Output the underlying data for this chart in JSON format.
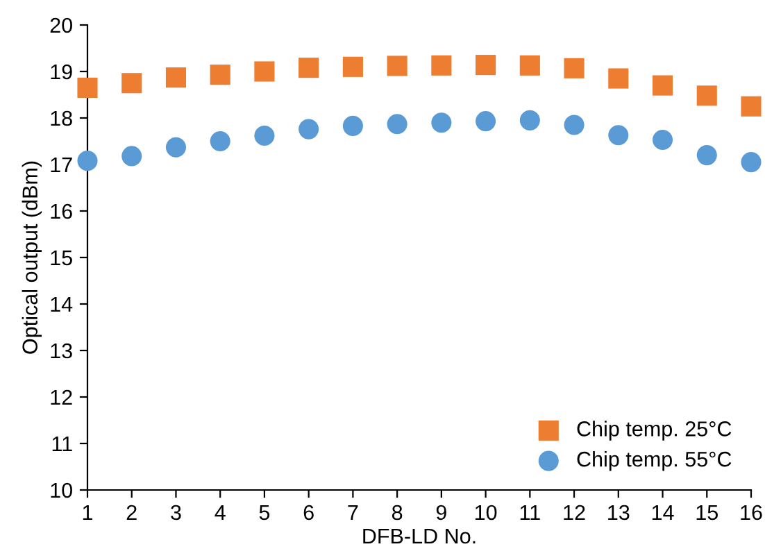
{
  "chart_data": {
    "type": "scatter",
    "xlabel": "DFB-LD No.",
    "ylabel": "Optical output (dBm)",
    "x": [
      1,
      2,
      3,
      4,
      5,
      6,
      7,
      8,
      9,
      10,
      11,
      12,
      13,
      14,
      15,
      16
    ],
    "series": [
      {
        "name": "Chip temp. 25°C",
        "color": "#ed7d31",
        "marker": "square",
        "values": [
          18.65,
          18.75,
          18.87,
          18.93,
          19.0,
          19.08,
          19.1,
          19.12,
          19.13,
          19.14,
          19.13,
          19.07,
          18.85,
          18.7,
          18.48,
          18.25
        ]
      },
      {
        "name": "Chip temp. 55°C",
        "color": "#5b9bd5",
        "marker": "circle",
        "values": [
          17.08,
          17.18,
          17.37,
          17.5,
          17.62,
          17.76,
          17.83,
          17.87,
          17.9,
          17.93,
          17.95,
          17.85,
          17.63,
          17.53,
          17.2,
          17.05
        ]
      }
    ],
    "xlim": [
      1,
      16
    ],
    "xticks": [
      1,
      2,
      3,
      4,
      5,
      6,
      7,
      8,
      9,
      10,
      11,
      12,
      13,
      14,
      15,
      16
    ],
    "ylim": [
      10,
      20
    ],
    "yticks": [
      10,
      11,
      12,
      13,
      14,
      15,
      16,
      17,
      18,
      19,
      20
    ],
    "grid": false,
    "legend": "bottom right"
  }
}
